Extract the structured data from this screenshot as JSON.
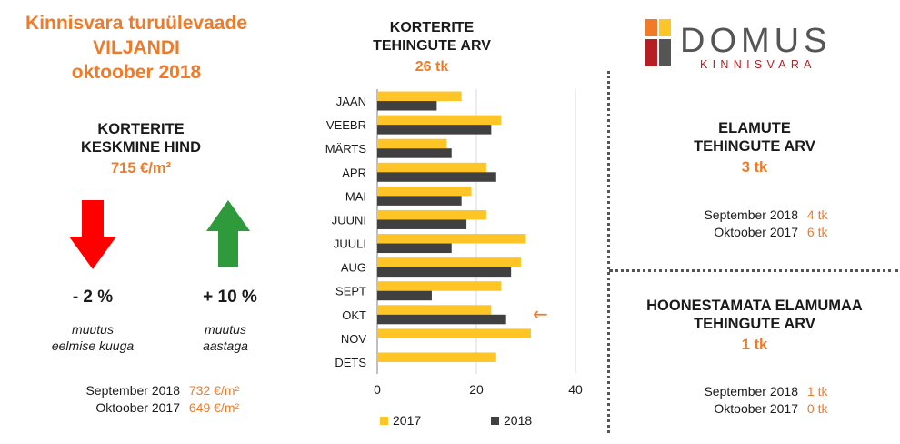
{
  "header": {
    "title_lines": [
      "Kinnisvara turuülevaade",
      "VILJANDI",
      "oktoober 2018"
    ]
  },
  "price": {
    "heading_lines": [
      "KORTERITE",
      "KESKMINE HIND"
    ],
    "value": "715 €/m²",
    "monthly": {
      "value": "- 2 %",
      "caption_lines": [
        "muutus",
        "eelmise kuuga"
      ],
      "direction": "down",
      "color": "#ff0000"
    },
    "yearly": {
      "value": "+ 10 %",
      "caption_lines": [
        "muutus",
        "aastaga"
      ],
      "direction": "up",
      "color": "#2e9a3c"
    },
    "comparisons": [
      {
        "label": "September 2018",
        "value": "732 €/m²"
      },
      {
        "label": "Oktoober 2017",
        "value": "649 €/m²"
      }
    ]
  },
  "apartments": {
    "heading_lines": [
      "KORTERITE",
      "TEHINGUTE ARV"
    ],
    "total": "26 tk"
  },
  "chart_data": {
    "type": "bar",
    "orientation": "horizontal",
    "categories": [
      "JAAN",
      "VEEBR",
      "MÄRTS",
      "APR",
      "MAI",
      "JUUNI",
      "JUULI",
      "AUG",
      "SEPT",
      "OKT",
      "NOV",
      "DETS"
    ],
    "series": [
      {
        "name": "2017",
        "color": "#ffc425",
        "values": [
          17,
          25,
          14,
          22,
          19,
          22,
          30,
          29,
          25,
          23,
          31,
          24
        ]
      },
      {
        "name": "2018",
        "color": "#404040",
        "values": [
          12,
          23,
          15,
          24,
          17,
          18,
          15,
          27,
          11,
          26,
          null,
          null
        ]
      }
    ],
    "xlim": [
      0,
      40
    ],
    "xticks": [
      0,
      20,
      40
    ],
    "grid": true,
    "legend_position": "bottom",
    "annotation": {
      "text": "←",
      "category": "OKT",
      "color": "#f07a27"
    }
  },
  "houses": {
    "heading_lines": [
      "ELAMUTE",
      "TEHINGUTE ARV"
    ],
    "value": "3 tk",
    "comparisons": [
      {
        "label": "September 2018",
        "value": "4 tk"
      },
      {
        "label": "Oktoober 2017",
        "value": "6 tk"
      }
    ]
  },
  "land": {
    "heading_lines": [
      "HOONESTAMATA ELAMUMAA",
      "TEHINGUTE ARV"
    ],
    "value": "1 tk",
    "comparisons": [
      {
        "label": "September 2018",
        "value": "1 tk"
      },
      {
        "label": "Oktoober 2017",
        "value": "0 tk"
      }
    ]
  },
  "logo": {
    "name": "DOMUS",
    "subtitle": "KINNISVARA",
    "colors": {
      "orange": "#f07a27",
      "yellow": "#ffc425",
      "red": "#b51f24",
      "gray": "#555555"
    }
  }
}
